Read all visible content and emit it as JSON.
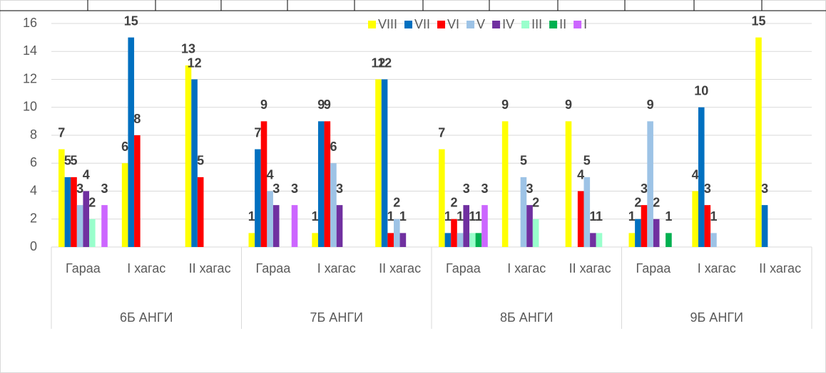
{
  "chart_data": {
    "type": "bar",
    "groups": [
      "6Б АНГИ",
      "7Б АНГИ",
      "8Б АНГИ",
      "9Б АНГИ"
    ],
    "categories": [
      "Гараа",
      "I хагас",
      "II хагас",
      "Гараа",
      "I хагас",
      "II хагас",
      "Гараа",
      "I хагас",
      "II хагас",
      "Гараа",
      "I хагас",
      "II хагас"
    ],
    "series": [
      {
        "name": "VIII",
        "color": "#ffff00",
        "values": [
          7,
          6,
          13,
          1,
          1,
          12,
          7,
          9,
          9,
          1,
          4,
          15
        ]
      },
      {
        "name": "VII",
        "color": "#0070c0",
        "values": [
          5,
          15,
          12,
          7,
          9,
          12,
          1,
          null,
          null,
          2,
          10,
          3
        ]
      },
      {
        "name": "VI",
        "color": "#ff0000",
        "values": [
          5,
          8,
          5,
          9,
          9,
          1,
          2,
          null,
          4,
          3,
          3,
          null
        ]
      },
      {
        "name": "V",
        "color": "#9dc3e6",
        "values": [
          3,
          null,
          null,
          4,
          6,
          2,
          1,
          5,
          5,
          9,
          1,
          null
        ]
      },
      {
        "name": "IV",
        "color": "#7030a0",
        "values": [
          4,
          null,
          null,
          3,
          3,
          1,
          3,
          3,
          1,
          2,
          null,
          null
        ]
      },
      {
        "name": "III",
        "color": "#99ffcc",
        "values": [
          2,
          null,
          null,
          null,
          null,
          null,
          1,
          2,
          1,
          null,
          null,
          null
        ]
      },
      {
        "name": "II",
        "color": "#00b050",
        "values": [
          null,
          null,
          null,
          null,
          null,
          null,
          1,
          null,
          null,
          1,
          null,
          null
        ]
      },
      {
        "name": "I",
        "color": "#cc66ff",
        "values": [
          3,
          null,
          null,
          3,
          null,
          null,
          3,
          null,
          null,
          null,
          null,
          null
        ]
      }
    ],
    "ylim": [
      0,
      16
    ],
    "yticks": [
      0,
      2,
      4,
      6,
      8,
      10,
      12,
      14,
      16
    ],
    "grid": true,
    "legend": "top-right"
  }
}
